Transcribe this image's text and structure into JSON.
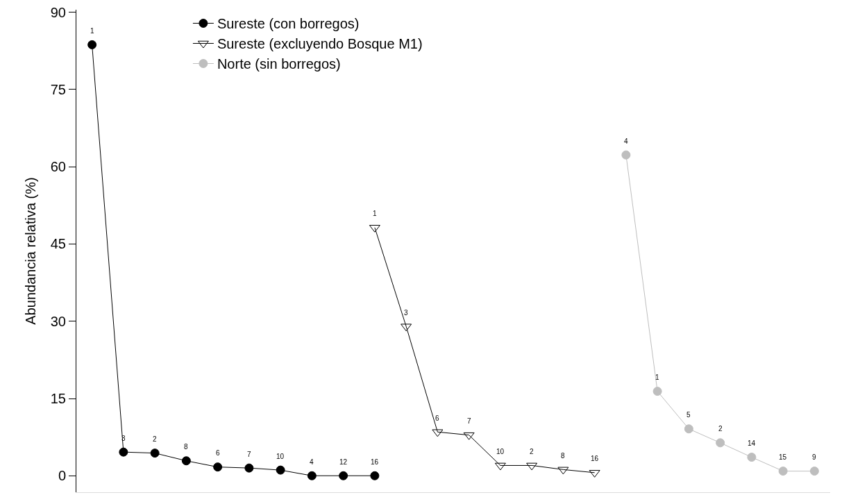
{
  "chart_data": {
    "type": "line",
    "ylabel": "Abundancia relativa (%)",
    "categories": [
      null,
      null,
      null,
      null,
      null,
      null,
      null,
      null,
      null,
      null,
      null,
      null,
      null,
      null,
      null,
      null,
      null,
      null,
      null,
      null,
      null,
      null,
      null,
      null
    ],
    "series": [
      {
        "name": "Sureste (con borregos)",
        "color": "#000000",
        "marker": "circle",
        "values": [
          83.7,
          4.6,
          4.4,
          2.9,
          1.7,
          1.5,
          1.1,
          0,
          0,
          0,
          null,
          null,
          null,
          null,
          null,
          null,
          null,
          null,
          null,
          null,
          null,
          null,
          null,
          null
        ]
      },
      {
        "name": "Sureste (excluyendo Bosque M1)",
        "color": "#000000",
        "marker": "triangle",
        "values": [
          null,
          null,
          null,
          null,
          null,
          null,
          null,
          null,
          null,
          48.2,
          29.0,
          8.5,
          7.9,
          2.0,
          2.0,
          1.2,
          0.6,
          null,
          null,
          null,
          null,
          null,
          null,
          null
        ]
      },
      {
        "name": "Norte (sin borregos)",
        "color": "#bebebe",
        "marker": "circle",
        "values": [
          null,
          null,
          null,
          null,
          null,
          null,
          null,
          null,
          null,
          null,
          null,
          null,
          null,
          null,
          null,
          null,
          null,
          62.3,
          16.4,
          9.1,
          6.4,
          3.6,
          0.9,
          0.9
        ]
      }
    ],
    "annotations": [
      "1",
      "3",
      "2",
      "8",
      "6",
      "7",
      "10",
      "4",
      "12",
      "16",
      "1",
      "3",
      "6",
      "7",
      "10",
      "2",
      "8",
      "16",
      "4",
      "1",
      "5",
      "2",
      "14",
      "15",
      "9"
    ],
    "ylim": [
      -3.2,
      90.5
    ],
    "yticks": [
      0,
      15,
      30,
      45,
      60,
      75,
      90
    ],
    "legend": "top",
    "line_style": "solid"
  }
}
